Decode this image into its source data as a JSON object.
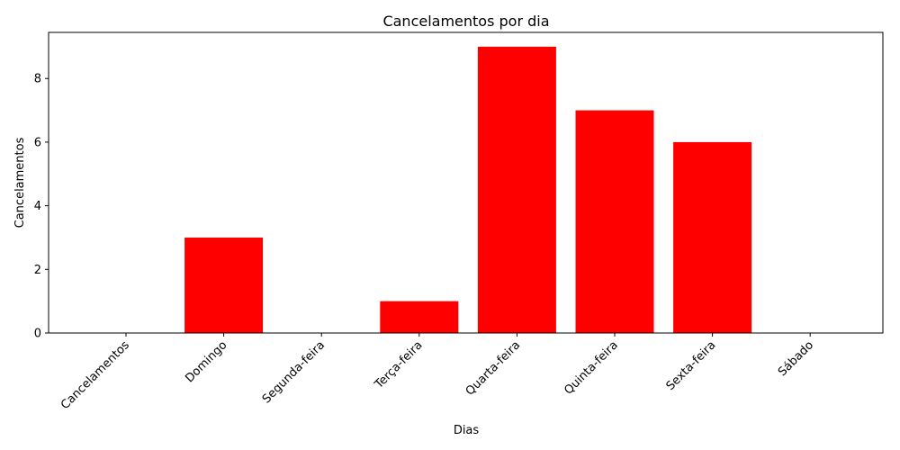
{
  "chart_data": {
    "type": "bar",
    "title": "Cancelamentos por dia",
    "xlabel": "Dias",
    "ylabel": "Cancelamentos",
    "categories": [
      "Cancelamentos",
      "Domingo",
      "Segunda-feira",
      "Terça-feira",
      "Quarta-feira",
      "Quinta-feira",
      "Sexta-feira",
      "Sábado"
    ],
    "values": [
      0,
      3,
      0,
      1,
      9,
      7,
      6,
      0
    ],
    "ylim": [
      0,
      9.45
    ],
    "yticks": [
      0,
      2,
      4,
      6,
      8
    ],
    "bar_color": "#ff0000",
    "grid": false,
    "legend": "none"
  }
}
